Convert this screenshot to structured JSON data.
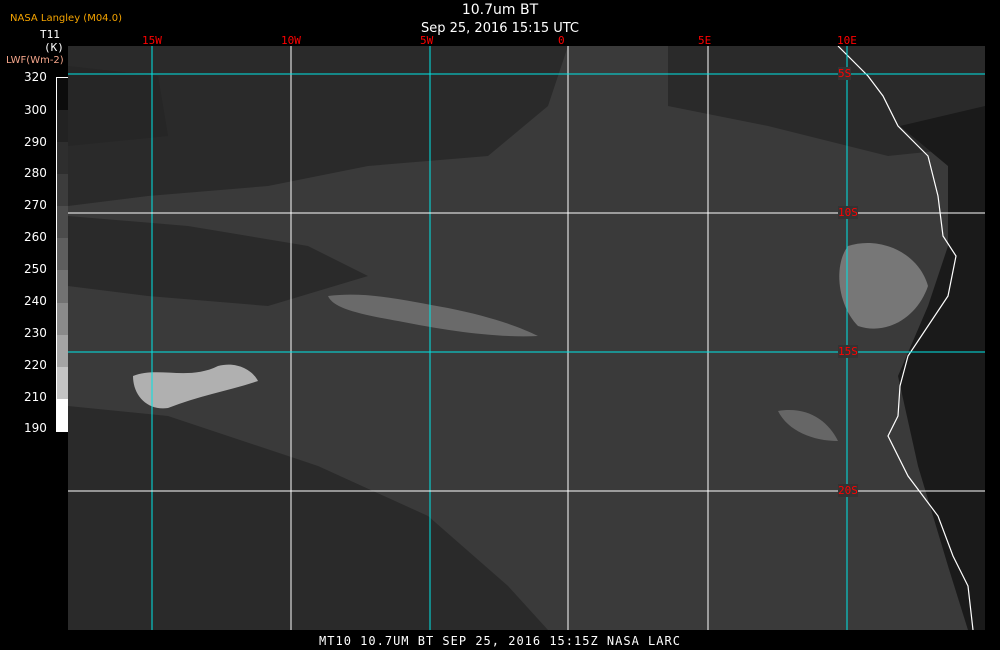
{
  "header": {
    "source": "NASA Langley (M04.0)",
    "title": "10.7um BT",
    "subtitle": "Sep 25, 2016 15:15 UTC"
  },
  "legend": {
    "variable": "T11",
    "unit": "(K)",
    "overlay_label": "LWF(Wm-2)",
    "ticks": [
      "320",
      "300",
      "290",
      "280",
      "270",
      "260",
      "250",
      "240",
      "230",
      "220",
      "210",
      "190"
    ]
  },
  "grid": {
    "longitudes": [
      {
        "label": "15W",
        "color": "#00e5e5"
      },
      {
        "label": "10W",
        "color": "#ffffff"
      },
      {
        "label": "5W",
        "color": "#00e5e5"
      },
      {
        "label": "0",
        "color": "#ffffff"
      },
      {
        "label": "5E",
        "color": "#ffffff"
      },
      {
        "label": "10E",
        "color": "#00e5e5"
      }
    ],
    "latitudes": [
      {
        "label": "5S",
        "color": "#00e5e5"
      },
      {
        "label": "10S",
        "color": "#ffffff"
      },
      {
        "label": "15S",
        "color": "#00e5e5"
      },
      {
        "label": "20S",
        "color": "#ffffff"
      }
    ],
    "label_color": "#ff0000"
  },
  "footer": "MT10  10.7UM BT   SEP 25, 2016 15:15Z   NASA LARC"
}
